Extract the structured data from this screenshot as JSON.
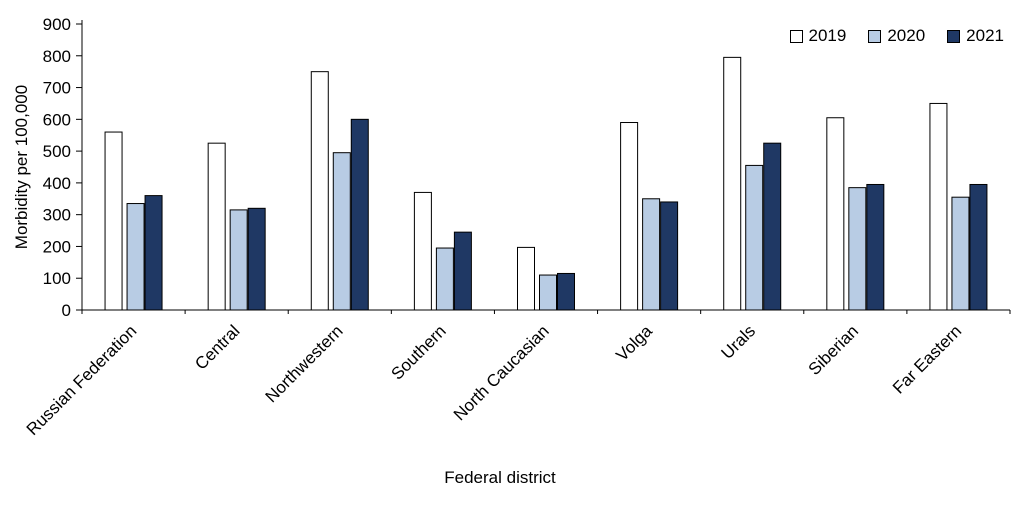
{
  "chart_data": {
    "type": "bar",
    "title": "",
    "xlabel": "Federal district",
    "ylabel": "Morbidity per 100,000",
    "ylim": [
      0,
      900
    ],
    "ytick_step": 100,
    "grid": false,
    "legend_position": "top-right",
    "categories": [
      "Russian Federation",
      "Central",
      "Northwestern",
      "Southern",
      "North Caucasian",
      "Volga",
      "Urals",
      "Siberian",
      "Far Eastern"
    ],
    "series": [
      {
        "name": "2019",
        "color": "#ffffff",
        "values": [
          560,
          525,
          750,
          370,
          197,
          590,
          795,
          605,
          650
        ]
      },
      {
        "name": "2020",
        "color": "#b8cce4",
        "values": [
          335,
          315,
          495,
          195,
          110,
          350,
          455,
          385,
          355
        ]
      },
      {
        "name": "2021",
        "color": "#1f3864",
        "values": [
          360,
          320,
          600,
          245,
          115,
          340,
          525,
          395,
          395
        ]
      }
    ]
  }
}
